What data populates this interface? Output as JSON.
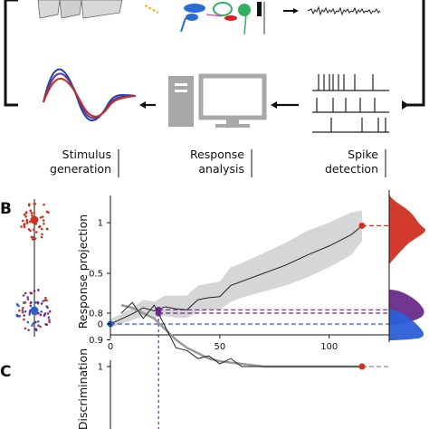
{
  "panels": {
    "b_letter": "B",
    "c_letter": "C"
  },
  "loop": {
    "stimulus_label": [
      "Stimulus",
      "generation"
    ],
    "response_label": [
      "Response",
      "analysis"
    ],
    "spike_label": [
      "Spike",
      "detection"
    ]
  },
  "colors": {
    "red": "#d03020",
    "purple": "#6a2a8a",
    "blue": "#2a5fd6",
    "band": "#cfcfcf",
    "gray_pc": "#a8a8a8"
  },
  "chart_data": [
    {
      "type": "line",
      "panel": "B",
      "ylabel": "Response projection",
      "xlabel": "",
      "xlim": [
        0,
        130
      ],
      "ylim": [
        0,
        1.25
      ],
      "xticks": [
        "0",
        "50",
        "100"
      ],
      "yticks": [
        "0",
        "0.5",
        "1"
      ],
      "series": [
        {
          "x": [
            0,
            5,
            10,
            15,
            20,
            25,
            30,
            35,
            40,
            45,
            50,
            55,
            60,
            70,
            80,
            90,
            100,
            110,
            115
          ],
          "y": [
            0.0,
            0.05,
            0.1,
            0.16,
            0.13,
            0.17,
            0.15,
            0.14,
            0.24,
            0.26,
            0.27,
            0.38,
            0.42,
            0.5,
            0.58,
            0.68,
            0.77,
            0.88,
            0.97
          ]
        }
      ],
      "band_upper": [
        0.05,
        0.1,
        0.16,
        0.24,
        0.22,
        0.28,
        0.28,
        0.28,
        0.38,
        0.4,
        0.42,
        0.56,
        0.6,
        0.7,
        0.8,
        0.92,
        1.0,
        1.1,
        1.12
      ],
      "band_lower": [
        -0.03,
        0.0,
        0.04,
        0.08,
        0.06,
        0.08,
        0.06,
        0.06,
        0.12,
        0.14,
        0.14,
        0.22,
        0.26,
        0.32,
        0.38,
        0.46,
        0.56,
        0.68,
        0.82
      ],
      "markers": [
        {
          "x": 0,
          "y": 0.0,
          "color": "blue"
        },
        {
          "x": 22,
          "y": 0.14,
          "color": "purple"
        },
        {
          "x": 115,
          "y": 0.97,
          "color": "red"
        }
      ]
    },
    {
      "type": "line",
      "panel": "C",
      "ylabel": "Discrimination",
      "xlabel": "",
      "xlim": [
        0,
        130
      ],
      "ylim": [
        0.75,
        1.02
      ],
      "yticks": [
        "0.8",
        "0.9",
        "1"
      ],
      "series": [
        {
          "x": [
            5,
            10,
            15,
            20,
            25,
            30,
            35,
            40,
            45,
            50,
            55,
            60,
            70,
            80,
            90,
            100,
            110,
            115
          ],
          "y": [
            0.8,
            0.76,
            0.82,
            0.77,
            0.85,
            0.93,
            0.94,
            0.97,
            0.96,
            0.99,
            0.97,
            1.0,
            1.0,
            1.0,
            1.0,
            1.0,
            1.0,
            1.0
          ]
        }
      ],
      "fit": {
        "x": [
          5,
          10,
          15,
          20,
          25,
          30,
          35,
          40,
          45,
          50,
          60,
          70,
          80,
          90,
          100,
          115
        ],
        "y": [
          0.77,
          0.78,
          0.8,
          0.82,
          0.86,
          0.9,
          0.93,
          0.95,
          0.97,
          0.98,
          0.99,
          1.0,
          1.0,
          1.0,
          1.0,
          1.0
        ]
      },
      "markers": [
        {
          "x": 22,
          "y": 0.8,
          "color": "purple"
        },
        {
          "x": 115,
          "y": 1.0,
          "color": "red"
        }
      ]
    }
  ]
}
